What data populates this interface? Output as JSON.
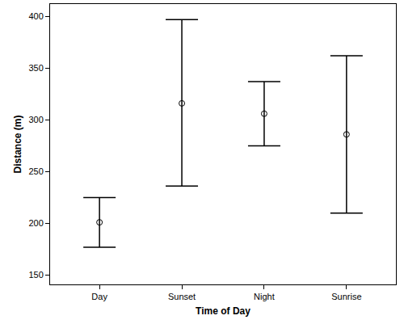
{
  "chart_data": {
    "type": "scatter",
    "x_label": "Time of Day",
    "y_label": "Distance (m)",
    "categories": [
      "Day",
      "Sunset",
      "Night",
      "Sunrise"
    ],
    "values": [
      201,
      316,
      306,
      286
    ],
    "error_y": {
      "plus": [
        24,
        81,
        31,
        76
      ],
      "minus": [
        24,
        80,
        31,
        76
      ]
    },
    "color": "#000000",
    "marker": "circle-open",
    "ylim": [
      141,
      412
    ],
    "yticks": [
      150,
      200,
      250,
      300,
      350,
      400
    ],
    "grid": false
  }
}
